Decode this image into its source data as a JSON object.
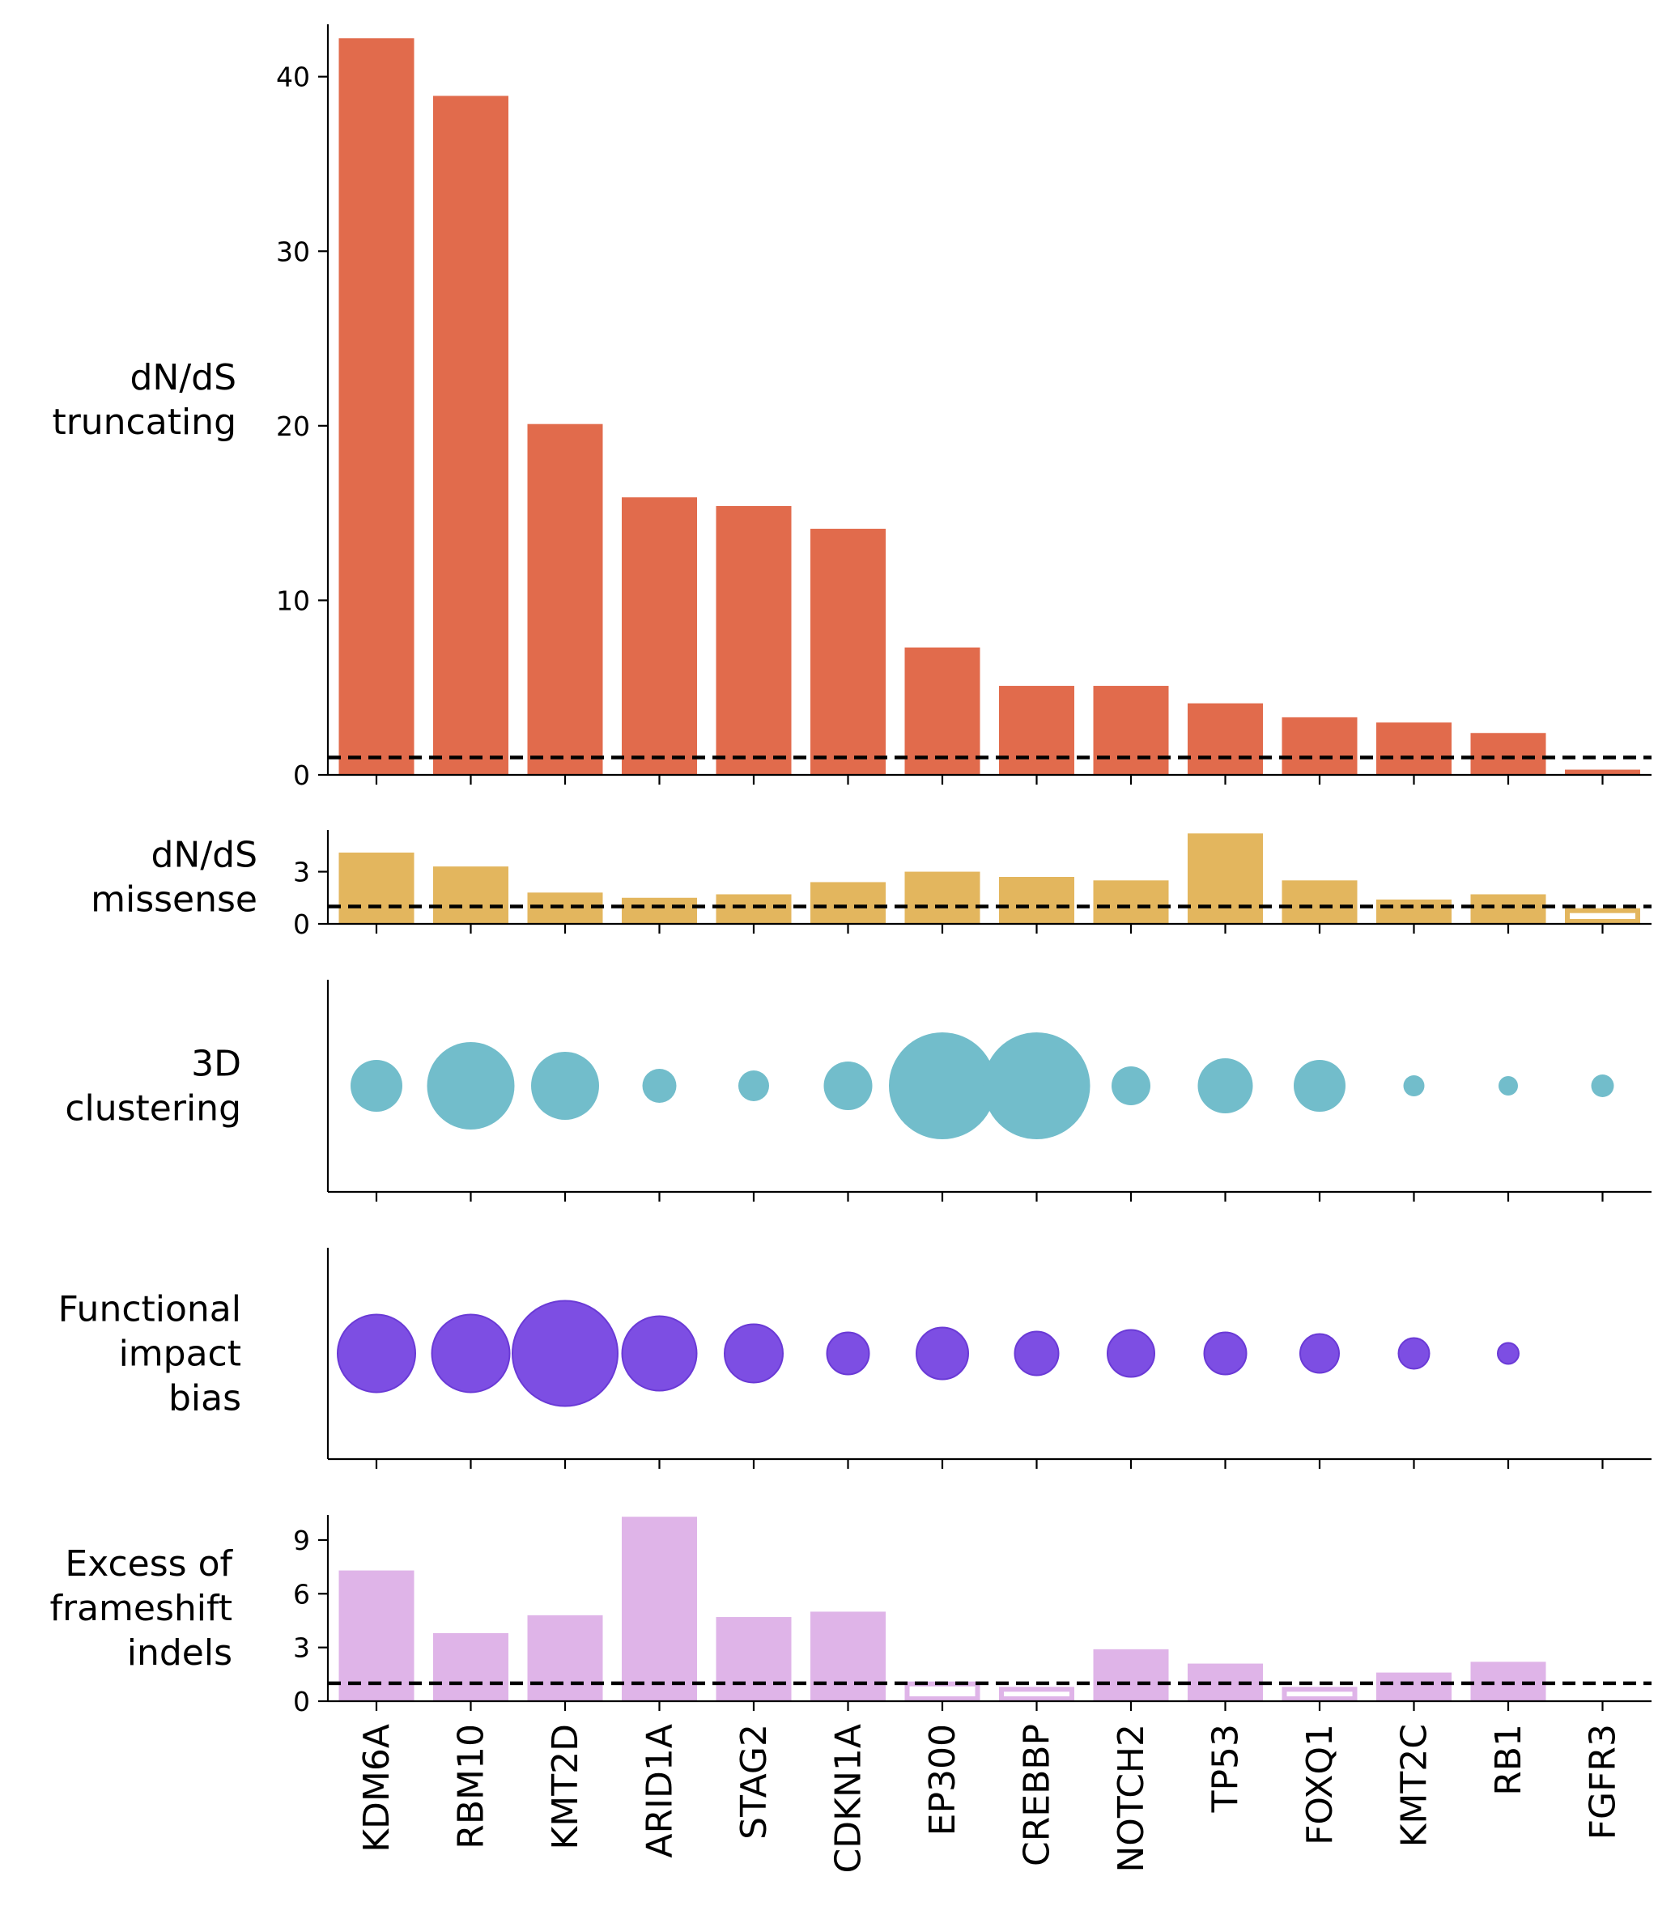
{
  "chart_data": {
    "type": "bar",
    "genes": [
      "KDM6A",
      "RBM10",
      "KMT2D",
      "ARID1A",
      "STAG2",
      "CDKN1A",
      "EP300",
      "CREBBP",
      "NOTCH2",
      "TP53",
      "FOXQ1",
      "KMT2C",
      "RB1",
      "FGFR3"
    ],
    "reference_line": 1,
    "panels": [
      {
        "id": "truncating",
        "type": "bar",
        "label": [
          "dN/dS",
          "truncating"
        ],
        "ylim": [
          0,
          43
        ],
        "yticks": [
          0,
          10,
          20,
          30,
          40
        ],
        "color": "#e16b4c",
        "values": [
          42.2,
          38.9,
          20.1,
          15.9,
          15.4,
          14.1,
          7.3,
          5.1,
          5.1,
          4.1,
          3.3,
          3.0,
          2.4,
          0.3
        ],
        "hollow": [
          false,
          false,
          false,
          false,
          false,
          false,
          false,
          false,
          false,
          false,
          false,
          false,
          false,
          false
        ]
      },
      {
        "id": "missense",
        "type": "bar",
        "label": [
          "dN/dS",
          "missense"
        ],
        "ylim": [
          0,
          5.4
        ],
        "yticks": [
          0,
          3
        ],
        "color": "#e3b65e",
        "values": [
          4.1,
          3.3,
          1.8,
          1.5,
          1.7,
          2.4,
          3.0,
          2.7,
          2.5,
          5.2,
          2.5,
          1.4,
          1.7,
          0.9
        ],
        "hollow": [
          false,
          false,
          false,
          false,
          false,
          false,
          false,
          false,
          false,
          false,
          false,
          false,
          false,
          true
        ]
      },
      {
        "id": "clustering",
        "type": "bubble",
        "label": [
          "3D",
          "clustering"
        ],
        "color": "#72bdcb",
        "sizes": [
          32,
          54,
          42,
          21,
          19,
          30,
          66,
          66,
          24,
          34,
          32,
          13,
          12,
          14
        ]
      },
      {
        "id": "fib",
        "type": "bubble",
        "label": [
          "Functional",
          "impact",
          "bias"
        ],
        "color": "#7644e1",
        "sizes": [
          48,
          48,
          65,
          46,
          36,
          26,
          32,
          27,
          29,
          26,
          24,
          19,
          13,
          0
        ]
      },
      {
        "id": "frameshift",
        "type": "bar",
        "label": [
          "Excess of",
          "frameshift",
          "indels"
        ],
        "ylim": [
          0,
          10.4
        ],
        "yticks": [
          0,
          3,
          6,
          9
        ],
        "color": "#dfb4e8",
        "values": [
          7.3,
          3.8,
          4.8,
          10.3,
          4.7,
          5.0,
          1.1,
          0.8,
          2.9,
          2.1,
          0.8,
          1.6,
          2.2,
          0
        ],
        "hollow": [
          false,
          false,
          false,
          false,
          false,
          false,
          true,
          true,
          false,
          false,
          true,
          false,
          false,
          false
        ]
      }
    ]
  }
}
